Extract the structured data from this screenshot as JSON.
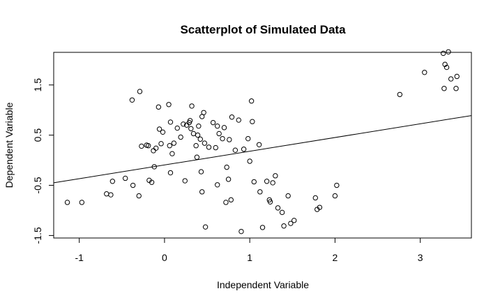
{
  "chart_data": {
    "type": "scatter",
    "title": "Scatterplot of Simulated Data",
    "xlabel": "Independent Variable",
    "ylabel": "Dependent Variable",
    "xlim": [
      -1.3,
      3.6
    ],
    "ylim": [
      -1.55,
      2.15
    ],
    "x_ticks": [
      {
        "value": -1,
        "label": "-1"
      },
      {
        "value": 0,
        "label": "0"
      },
      {
        "value": 1,
        "label": "1"
      },
      {
        "value": 2,
        "label": "2"
      },
      {
        "value": 3,
        "label": "3"
      }
    ],
    "y_ticks": [
      {
        "value": -1.5,
        "label": "-1.5"
      },
      {
        "value": -0.5,
        "label": "-0.5"
      },
      {
        "value": 0.5,
        "label": "0.5"
      },
      {
        "value": 1.5,
        "label": "1.5"
      }
    ],
    "fit_line": {
      "x": [
        -1.3,
        3.6
      ],
      "y": [
        -0.45,
        0.89
      ]
    },
    "points": [
      [
        -1.14,
        -0.84
      ],
      [
        -0.97,
        -0.84
      ],
      [
        -0.68,
        -0.67
      ],
      [
        -0.63,
        -0.69
      ],
      [
        -0.61,
        -0.42
      ],
      [
        -0.46,
        -0.36
      ],
      [
        -0.38,
        1.2
      ],
      [
        -0.37,
        -0.5
      ],
      [
        -0.3,
        -0.71
      ],
      [
        -0.29,
        1.37
      ],
      [
        -0.27,
        0.28
      ],
      [
        -0.21,
        0.3
      ],
      [
        -0.19,
        0.29
      ],
      [
        -0.18,
        -0.4
      ],
      [
        -0.15,
        -0.44
      ],
      [
        -0.13,
        0.19
      ],
      [
        -0.12,
        -0.13
      ],
      [
        -0.1,
        0.24
      ],
      [
        -0.07,
        1.06
      ],
      [
        -0.06,
        0.62
      ],
      [
        -0.04,
        0.33
      ],
      [
        -0.02,
        0.56
      ],
      [
        0.05,
        1.11
      ],
      [
        0.06,
        0.29
      ],
      [
        0.07,
        0.76
      ],
      [
        0.07,
        -0.25
      ],
      [
        0.09,
        0.13
      ],
      [
        0.11,
        0.34
      ],
      [
        0.15,
        0.64
      ],
      [
        0.19,
        0.46
      ],
      [
        0.22,
        0.72
      ],
      [
        0.24,
        -0.41
      ],
      [
        0.26,
        0.7
      ],
      [
        0.29,
        0.75
      ],
      [
        0.3,
        0.79
      ],
      [
        0.31,
        0.63
      ],
      [
        0.32,
        1.08
      ],
      [
        0.34,
        0.53
      ],
      [
        0.37,
        0.29
      ],
      [
        0.38,
        0.06
      ],
      [
        0.39,
        0.5
      ],
      [
        0.4,
        0.68
      ],
      [
        0.42,
        0.42
      ],
      [
        0.43,
        -0.23
      ],
      [
        0.44,
        -0.63
      ],
      [
        0.44,
        0.87
      ],
      [
        0.46,
        0.95
      ],
      [
        0.47,
        0.34
      ],
      [
        0.48,
        -1.33
      ],
      [
        0.52,
        0.26
      ],
      [
        0.57,
        0.75
      ],
      [
        0.6,
        0.25
      ],
      [
        0.62,
        -0.49
      ],
      [
        0.62,
        0.68
      ],
      [
        0.64,
        0.53
      ],
      [
        0.68,
        0.43
      ],
      [
        0.7,
        0.65
      ],
      [
        0.72,
        -0.84
      ],
      [
        0.73,
        -0.14
      ],
      [
        0.75,
        -0.38
      ],
      [
        0.76,
        0.41
      ],
      [
        0.78,
        -0.79
      ],
      [
        0.79,
        0.86
      ],
      [
        0.83,
        0.2
      ],
      [
        0.87,
        0.8
      ],
      [
        0.9,
        -1.42
      ],
      [
        0.93,
        0.22
      ],
      [
        0.98,
        0.43
      ],
      [
        1.0,
        -0.02
      ],
      [
        1.02,
        1.18
      ],
      [
        1.03,
        0.77
      ],
      [
        1.05,
        -0.43
      ],
      [
        1.11,
        0.31
      ],
      [
        1.12,
        -0.63
      ],
      [
        1.15,
        -1.34
      ],
      [
        1.2,
        -0.42
      ],
      [
        1.23,
        -0.79
      ],
      [
        1.24,
        -0.83
      ],
      [
        1.27,
        -0.45
      ],
      [
        1.3,
        -0.31
      ],
      [
        1.33,
        -0.95
      ],
      [
        1.38,
        -1.04
      ],
      [
        1.4,
        -1.31
      ],
      [
        1.45,
        -0.71
      ],
      [
        1.48,
        -1.26
      ],
      [
        1.52,
        -1.2
      ],
      [
        1.77,
        -0.75
      ],
      [
        1.79,
        -0.98
      ],
      [
        1.82,
        -0.94
      ],
      [
        2.0,
        -0.71
      ],
      [
        2.02,
        -0.5
      ],
      [
        2.76,
        1.31
      ],
      [
        3.05,
        1.75
      ],
      [
        3.27,
        2.13
      ],
      [
        3.28,
        1.43
      ],
      [
        3.29,
        1.91
      ],
      [
        3.31,
        1.85
      ],
      [
        3.33,
        2.16
      ],
      [
        3.36,
        1.62
      ],
      [
        3.42,
        1.43
      ],
      [
        3.43,
        1.67
      ]
    ]
  }
}
